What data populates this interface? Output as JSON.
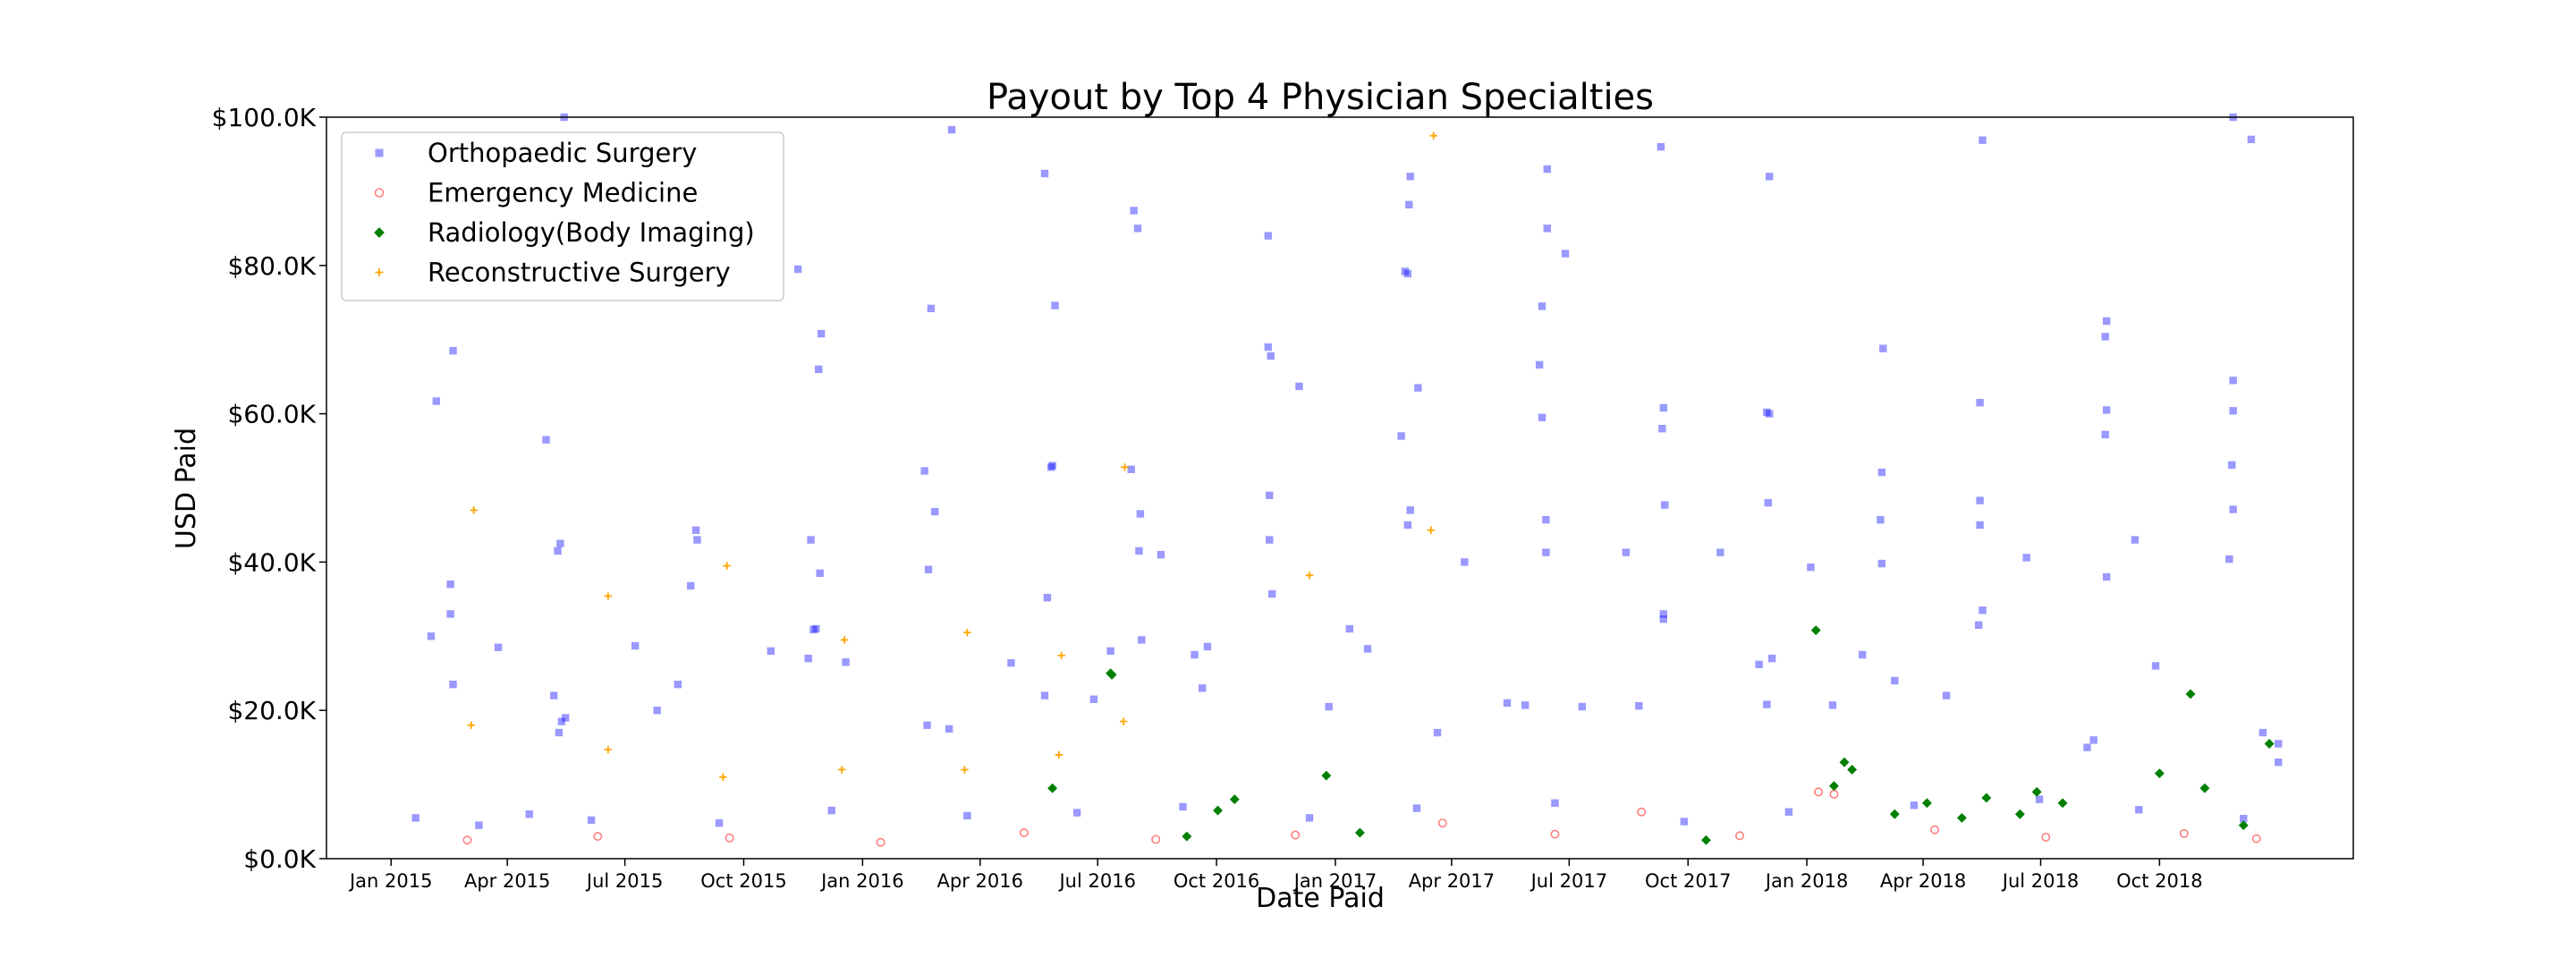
{
  "chart_data": {
    "type": "scatter",
    "title": "Payout by Top 4 Physician Specialties",
    "xlabel": "Date Paid",
    "ylabel": "USD Paid",
    "xlim": [
      "2014-11-12",
      "2019-02-28"
    ],
    "ylim": [
      0,
      100000
    ],
    "x_ticks": [
      {
        "date": "2015-01-01",
        "label": "Jan 2015"
      },
      {
        "date": "2015-04-01",
        "label": "Apr 2015"
      },
      {
        "date": "2015-07-01",
        "label": "Jul 2015"
      },
      {
        "date": "2015-10-01",
        "label": "Oct 2015"
      },
      {
        "date": "2016-01-01",
        "label": "Jan 2016"
      },
      {
        "date": "2016-04-01",
        "label": "Apr 2016"
      },
      {
        "date": "2016-07-01",
        "label": "Jul 2016"
      },
      {
        "date": "2016-10-01",
        "label": "Oct 2016"
      },
      {
        "date": "2017-01-01",
        "label": "Jan 2017"
      },
      {
        "date": "2017-04-01",
        "label": "Apr 2017"
      },
      {
        "date": "2017-07-01",
        "label": "Jul 2017"
      },
      {
        "date": "2017-10-01",
        "label": "Oct 2017"
      },
      {
        "date": "2018-01-01",
        "label": "Jan 2018"
      },
      {
        "date": "2018-04-01",
        "label": "Apr 2018"
      },
      {
        "date": "2018-07-01",
        "label": "Jul 2018"
      },
      {
        "date": "2018-10-01",
        "label": "Oct 2018"
      }
    ],
    "y_ticks": [
      {
        "value": 0,
        "label": "$0.0K"
      },
      {
        "value": 20000,
        "label": "$20.0K"
      },
      {
        "value": 40000,
        "label": "$40.0K"
      },
      {
        "value": 60000,
        "label": "$60.0K"
      },
      {
        "value": 80000,
        "label": "$80.0K"
      },
      {
        "value": 100000,
        "label": "$100.0K"
      }
    ],
    "grid": false,
    "legend_position": "top-left",
    "series": [
      {
        "name": "Orthopaedic Surgery",
        "color": "#0000ff",
        "marker": "square",
        "alpha": 0.4,
        "points": [
          [
            "2015-02-05",
            61700
          ],
          [
            "2015-02-18",
            68500
          ],
          [
            "2015-02-16",
            37000
          ],
          [
            "2015-02-16",
            33000
          ],
          [
            "2015-02-18",
            23500
          ],
          [
            "2015-02-01",
            30000
          ],
          [
            "2015-03-25",
            28500
          ],
          [
            "2015-05-01",
            56500
          ],
          [
            "2015-05-15",
            100000
          ],
          [
            "2015-05-12",
            42500
          ],
          [
            "2015-05-10",
            41500
          ],
          [
            "2015-05-07",
            22000
          ],
          [
            "2015-05-16",
            19000
          ],
          [
            "2015-05-13",
            18500
          ],
          [
            "2015-05-11",
            17000
          ],
          [
            "2015-07-09",
            28700
          ],
          [
            "2015-08-11",
            23500
          ],
          [
            "2015-07-26",
            20000
          ],
          [
            "2015-08-25",
            44300
          ],
          [
            "2015-08-26",
            43000
          ],
          [
            "2015-08-21",
            36800
          ],
          [
            "2015-10-22",
            28000
          ],
          [
            "2015-11-12",
            79500
          ],
          [
            "2015-11-30",
            70800
          ],
          [
            "2015-11-28",
            66000
          ],
          [
            "2015-11-22",
            43000
          ],
          [
            "2015-11-29",
            38500
          ],
          [
            "2015-11-24",
            30900
          ],
          [
            "2015-11-26",
            31000
          ],
          [
            "2015-11-20",
            27000
          ],
          [
            "2015-12-19",
            26500
          ],
          [
            "2016-02-18",
            52300
          ],
          [
            "2016-02-23",
            74200
          ],
          [
            "2016-03-10",
            98300
          ],
          [
            "2016-02-26",
            46800
          ],
          [
            "2016-02-21",
            39000
          ],
          [
            "2016-02-20",
            18000
          ],
          [
            "2016-03-08",
            17500
          ],
          [
            "2016-04-25",
            26400
          ],
          [
            "2016-05-21",
            92400
          ],
          [
            "2016-05-29",
            74600
          ],
          [
            "2016-05-27",
            53000
          ],
          [
            "2016-05-26",
            52800
          ],
          [
            "2016-05-23",
            35200
          ],
          [
            "2016-05-21",
            22000
          ],
          [
            "2016-06-28",
            21500
          ],
          [
            "2016-07-11",
            28000
          ],
          [
            "2016-07-29",
            87400
          ],
          [
            "2016-08-01",
            85000
          ],
          [
            "2016-07-27",
            52500
          ],
          [
            "2016-08-03",
            46500
          ],
          [
            "2016-08-02",
            41500
          ],
          [
            "2016-08-19",
            41000
          ],
          [
            "2016-08-04",
            29500
          ],
          [
            "2016-09-14",
            27500
          ],
          [
            "2016-09-24",
            28600
          ],
          [
            "2016-09-20",
            23000
          ],
          [
            "2016-11-10",
            84000
          ],
          [
            "2016-11-10",
            69000
          ],
          [
            "2016-11-12",
            67800
          ],
          [
            "2016-11-11",
            49000
          ],
          [
            "2016-11-11",
            43000
          ],
          [
            "2016-11-13",
            35700
          ],
          [
            "2016-12-04",
            63700
          ],
          [
            "2016-12-27",
            20500
          ],
          [
            "2017-01-12",
            31000
          ],
          [
            "2017-01-26",
            28300
          ],
          [
            "2017-02-21",
            57000
          ],
          [
            "2017-02-27",
            88200
          ],
          [
            "2017-02-28",
            92000
          ],
          [
            "2017-02-26",
            78900
          ],
          [
            "2017-02-24",
            79200
          ],
          [
            "2017-02-28",
            47000
          ],
          [
            "2017-03-06",
            63500
          ],
          [
            "2017-02-26",
            45000
          ],
          [
            "2017-03-21",
            17000
          ],
          [
            "2017-04-11",
            40000
          ],
          [
            "2017-05-14",
            21000
          ],
          [
            "2017-05-28",
            20700
          ],
          [
            "2017-06-08",
            66600
          ],
          [
            "2017-06-10",
            74500
          ],
          [
            "2017-06-10",
            59500
          ],
          [
            "2017-06-14",
            93000
          ],
          [
            "2017-06-14",
            85000
          ],
          [
            "2017-06-28",
            81600
          ],
          [
            "2017-06-13",
            45700
          ],
          [
            "2017-06-13",
            41300
          ],
          [
            "2017-07-11",
            20500
          ],
          [
            "2017-08-14",
            41300
          ],
          [
            "2017-08-24",
            20600
          ],
          [
            "2017-09-10",
            96000
          ],
          [
            "2017-09-12",
            60800
          ],
          [
            "2017-09-11",
            58000
          ],
          [
            "2017-09-13",
            47700
          ],
          [
            "2017-09-12",
            33000
          ],
          [
            "2017-09-12",
            32300
          ],
          [
            "2017-10-26",
            41300
          ],
          [
            "2017-11-25",
            26200
          ],
          [
            "2017-12-03",
            60000
          ],
          [
            "2017-12-01",
            60200
          ],
          [
            "2017-12-03",
            92000
          ],
          [
            "2017-12-02",
            48000
          ],
          [
            "2017-12-05",
            27000
          ],
          [
            "2017-12-01",
            20800
          ],
          [
            "2018-01-04",
            39300
          ],
          [
            "2018-01-21",
            20700
          ],
          [
            "2018-02-13",
            27500
          ],
          [
            "2018-03-01",
            68800
          ],
          [
            "2018-02-28",
            52100
          ],
          [
            "2018-02-27",
            45700
          ],
          [
            "2018-02-28",
            39800
          ],
          [
            "2018-03-10",
            24000
          ],
          [
            "2018-04-19",
            22000
          ],
          [
            "2018-05-17",
            96900
          ],
          [
            "2018-05-15",
            61500
          ],
          [
            "2018-05-15",
            48300
          ],
          [
            "2018-05-15",
            45000
          ],
          [
            "2018-05-17",
            33500
          ],
          [
            "2018-05-14",
            31500
          ],
          [
            "2018-06-20",
            40600
          ],
          [
            "2018-08-06",
            15000
          ],
          [
            "2018-08-11",
            16000
          ],
          [
            "2018-08-21",
            72500
          ],
          [
            "2018-08-20",
            70400
          ],
          [
            "2018-08-21",
            60500
          ],
          [
            "2018-08-20",
            57200
          ],
          [
            "2018-08-21",
            38000
          ],
          [
            "2018-09-12",
            43000
          ],
          [
            "2018-09-28",
            26000
          ],
          [
            "2018-11-27",
            100000
          ],
          [
            "2018-11-27",
            64500
          ],
          [
            "2018-11-27",
            60400
          ],
          [
            "2018-11-26",
            53100
          ],
          [
            "2018-11-27",
            47100
          ],
          [
            "2018-11-24",
            40400
          ],
          [
            "2018-12-11",
            97000
          ],
          [
            "2018-12-20",
            17000
          ],
          [
            "2019-01-01",
            15500
          ],
          [
            "2019-01-01",
            13000
          ],
          [
            "2015-01-20",
            5500
          ],
          [
            "2015-03-10",
            4500
          ],
          [
            "2015-04-18",
            6000
          ],
          [
            "2015-06-05",
            5200
          ],
          [
            "2015-09-12",
            4800
          ],
          [
            "2015-12-08",
            6500
          ],
          [
            "2016-03-22",
            5800
          ],
          [
            "2016-06-15",
            6200
          ],
          [
            "2016-09-05",
            7000
          ],
          [
            "2016-12-12",
            5500
          ],
          [
            "2017-03-05",
            6800
          ],
          [
            "2017-06-20",
            7500
          ],
          [
            "2017-09-28",
            5000
          ],
          [
            "2017-12-18",
            6300
          ],
          [
            "2018-03-25",
            7200
          ],
          [
            "2018-06-30",
            8000
          ],
          [
            "2018-09-15",
            6600
          ],
          [
            "2018-12-05",
            5400
          ]
        ]
      },
      {
        "name": "Emergency Medicine",
        "color": "#ff0000",
        "marker": "circle",
        "alpha": 0.5,
        "points": [
          [
            "2015-03-01",
            2500
          ],
          [
            "2015-06-10",
            3000
          ],
          [
            "2015-09-20",
            2800
          ],
          [
            "2016-01-15",
            2200
          ],
          [
            "2016-05-05",
            3500
          ],
          [
            "2016-08-15",
            2600
          ],
          [
            "2016-12-01",
            3200
          ],
          [
            "2017-03-25",
            4800
          ],
          [
            "2017-06-20",
            3300
          ],
          [
            "2017-08-26",
            6300
          ],
          [
            "2017-11-10",
            3100
          ],
          [
            "2018-01-10",
            9000
          ],
          [
            "2018-01-22",
            8700
          ],
          [
            "2018-04-10",
            3900
          ],
          [
            "2018-07-05",
            2900
          ],
          [
            "2018-10-20",
            3400
          ],
          [
            "2018-12-15",
            2700
          ]
        ]
      },
      {
        "name": "Radiology(Body Imaging)",
        "color": "#008000",
        "marker": "diamond",
        "alpha": 1.0,
        "points": [
          [
            "2016-05-27",
            9500
          ],
          [
            "2016-07-11",
            25000
          ],
          [
            "2016-07-12",
            24800
          ],
          [
            "2016-10-15",
            8000
          ],
          [
            "2016-12-25",
            11200
          ],
          [
            "2017-01-20",
            3500
          ],
          [
            "2018-01-08",
            30800
          ],
          [
            "2018-01-30",
            13000
          ],
          [
            "2018-02-05",
            12000
          ],
          [
            "2018-01-22",
            9800
          ],
          [
            "2018-03-10",
            6000
          ],
          [
            "2018-04-04",
            7500
          ],
          [
            "2018-05-01",
            5500
          ],
          [
            "2018-05-20",
            8200
          ],
          [
            "2018-06-15",
            6000
          ],
          [
            "2018-06-28",
            9000
          ],
          [
            "2018-07-18",
            7500
          ],
          [
            "2018-10-25",
            22200
          ],
          [
            "2018-10-01",
            11500
          ],
          [
            "2018-11-05",
            9500
          ],
          [
            "2018-12-25",
            15500
          ],
          [
            "2018-12-05",
            4500
          ],
          [
            "2016-10-02",
            6500
          ],
          [
            "2016-09-08",
            3000
          ],
          [
            "2017-10-15",
            2500
          ]
        ]
      },
      {
        "name": "Reconstructive Surgery",
        "color": "#ffa500",
        "marker": "plus",
        "alpha": 1.0,
        "points": [
          [
            "2015-03-06",
            47000
          ],
          [
            "2015-03-04",
            18000
          ],
          [
            "2015-06-18",
            35400
          ],
          [
            "2015-06-18",
            14700
          ],
          [
            "2015-09-18",
            39500
          ],
          [
            "2015-09-15",
            11000
          ],
          [
            "2015-12-18",
            29500
          ],
          [
            "2015-12-16",
            12000
          ],
          [
            "2016-03-22",
            30500
          ],
          [
            "2016-03-20",
            12000
          ],
          [
            "2016-06-03",
            27400
          ],
          [
            "2016-06-01",
            14000
          ],
          [
            "2016-07-22",
            52800
          ],
          [
            "2016-07-21",
            18500
          ],
          [
            "2016-12-12",
            38200
          ],
          [
            "2017-03-18",
            97500
          ],
          [
            "2017-03-16",
            44300
          ]
        ]
      }
    ]
  }
}
